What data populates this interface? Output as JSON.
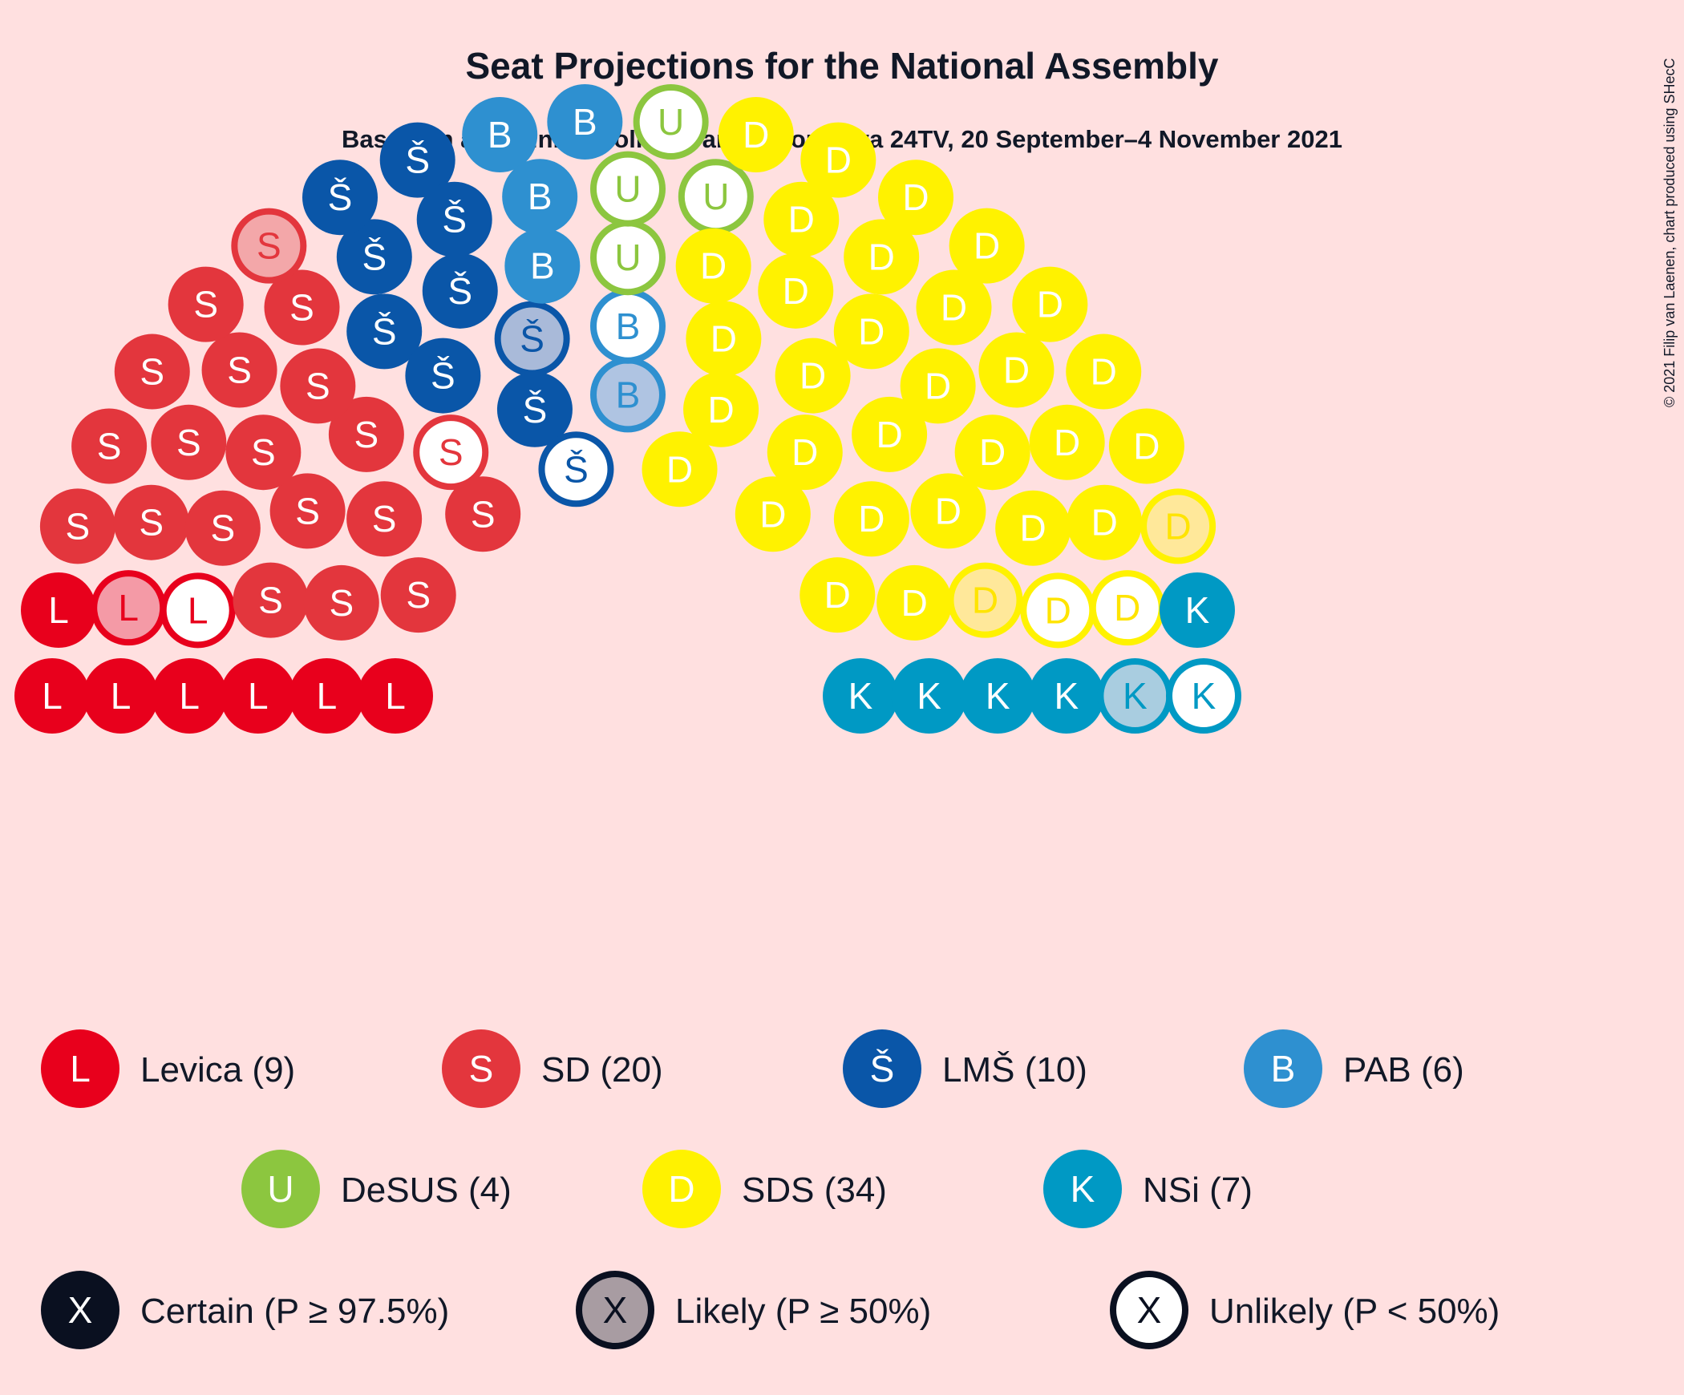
{
  "chart_data": {
    "type": "parliament",
    "title": "Seat Projections for the National Assembly",
    "subtitle": "Based on an Opinion Poll by Parsifal for Nova 24TV, 20 September–4 November 2021",
    "credit": "© 2021 Filip van Laenen, chart produced using SHecC",
    "total_seats": 90,
    "parties": [
      {
        "letter": "L",
        "label": "Levica (9)",
        "seats": 9,
        "certain": 7,
        "likely": 1,
        "unlikely": 1,
        "color": "#E8001C",
        "light": "#F49AA6"
      },
      {
        "letter": "S",
        "label": "SD (20)",
        "seats": 20,
        "certain": 18,
        "likely": 1,
        "unlikely": 1,
        "color": "#E3363D",
        "light": "#F3A7A9"
      },
      {
        "letter": "Š",
        "label": "LMŠ (10)",
        "seats": 10,
        "certain": 8,
        "likely": 1,
        "unlikely": 1,
        "color": "#0A56A8",
        "light": "#A9BAD9"
      },
      {
        "letter": "B",
        "label": "PAB (6)",
        "seats": 6,
        "certain": 4,
        "likely": 1,
        "unlikely": 1,
        "color": "#2E90D0",
        "light": "#AFC4E2"
      },
      {
        "letter": "U",
        "label": "DeSUS (4)",
        "seats": 4,
        "certain": 0,
        "likely": 0,
        "unlikely": 4,
        "color": "#8CC63F",
        "light": "#D2EBB2"
      },
      {
        "letter": "D",
        "label": "SDS (34)",
        "seats": 34,
        "certain": 30,
        "likely": 2,
        "unlikely": 2,
        "color": "#FFF200",
        "light": "#FFE89A"
      },
      {
        "letter": "K",
        "label": "NSi (7)",
        "seats": 7,
        "certain": 5,
        "likely": 1,
        "unlikely": 1,
        "color": "#0099C4",
        "light": "#A9CDE0"
      }
    ],
    "status_legend": [
      {
        "key": "certain",
        "letter": "X",
        "label": "Certain (P ≥ 97.5%)"
      },
      {
        "key": "likely",
        "letter": "X",
        "label": "Likely (P ≥ 50%)"
      },
      {
        "key": "unlikely",
        "letter": "X",
        "label": "Unlikely (P < 50%)"
      }
    ],
    "colors": {
      "background": "#FFE0E0",
      "text": "#111827",
      "legend_dark": "#0A1020",
      "likely_gray": "#A89CA2"
    }
  }
}
